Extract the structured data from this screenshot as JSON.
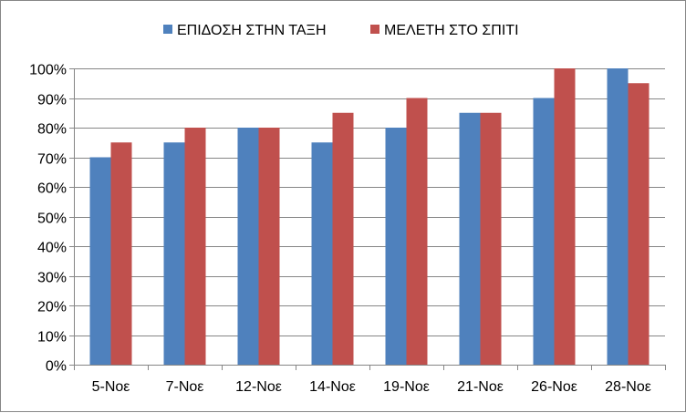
{
  "chart_data": {
    "type": "bar",
    "categories": [
      "5-Νοε",
      "7-Νοε",
      "12-Νοε",
      "14-Νοε",
      "19-Νοε",
      "21-Νοε",
      "26-Νοε",
      "28-Νοε"
    ],
    "series": [
      {
        "name": "ΕΠΙΔΟΣΗ ΣΤΗΝ ΤΑΞΗ",
        "color": "#4F81BD",
        "values": [
          0.7,
          0.75,
          0.8,
          0.75,
          0.8,
          0.85,
          0.9,
          1.0
        ]
      },
      {
        "name": "ΜΕΛΕΤΗ ΣΤΟ ΣΠΙΤΙ",
        "color": "#C0504D",
        "values": [
          0.75,
          0.8,
          0.8,
          0.85,
          0.9,
          0.85,
          1.0,
          0.95
        ]
      }
    ],
    "ylim": [
      0,
      1
    ],
    "y_ticks": [
      0,
      0.1,
      0.2,
      0.3,
      0.4,
      0.5,
      0.6,
      0.7,
      0.8,
      0.9,
      1.0
    ],
    "y_tick_labels": [
      "0%",
      "10%",
      "20%",
      "30%",
      "40%",
      "50%",
      "60%",
      "70%",
      "80%",
      "90%",
      "100%"
    ],
    "grid": true,
    "legend_position": "top-center",
    "gridline_color": "#868686"
  }
}
